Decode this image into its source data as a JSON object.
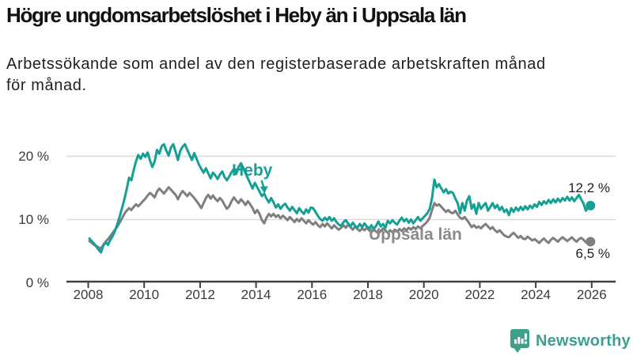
{
  "header": {
    "title": "Högre ungdomsarbetslöshet i Heby än i Uppsala län",
    "subtitle_line1": "Arbetssökande som andel av den registerbaserade arbetskraften månad",
    "subtitle_line2": "för månad."
  },
  "chart_data": {
    "type": "line",
    "title": "Högre ungdomsarbetslöshet i Heby än i Uppsala län",
    "xlabel": "",
    "ylabel": "",
    "y_unit": "%",
    "x_start_year": 2008,
    "points_per_year": 12,
    "ylim": [
      0,
      24
    ],
    "grid": "horizontal",
    "legend_position": "inline-labels",
    "x_ticks": [
      "2008",
      "2010",
      "2012",
      "2014",
      "2016",
      "2018",
      "2020",
      "2022",
      "2024",
      "2026"
    ],
    "y_ticks": [
      {
        "label": "0 %",
        "value": 0
      },
      {
        "label": "10 %",
        "value": 10
      },
      {
        "label": "20 %",
        "value": 20
      }
    ],
    "series": [
      {
        "id": "uppsala-lan",
        "name": "Uppsala län",
        "color": "#7F7F7F",
        "end_label": "6,5 %",
        "end_value": 6.5,
        "values": [
          6.6,
          6.3,
          6.0,
          5.8,
          5.6,
          5.4,
          6.0,
          6.5,
          6.9,
          7.4,
          7.9,
          8.4,
          8.9,
          9.5,
          10.2,
          10.9,
          11.4,
          11.8,
          11.5,
          12.0,
          12.4,
          12.1,
          12.5,
          12.9,
          13.3,
          13.8,
          14.2,
          13.9,
          13.5,
          14.4,
          14.9,
          14.5,
          14.1,
          14.6,
          15.1,
          14.7,
          14.3,
          13.9,
          13.2,
          14.0,
          14.5,
          14.1,
          13.7,
          14.2,
          13.8,
          13.4,
          12.9,
          12.4,
          11.8,
          12.6,
          13.4,
          13.9,
          13.3,
          13.8,
          13.3,
          12.9,
          13.4,
          13.0,
          12.3,
          11.7,
          12.1,
          12.9,
          13.5,
          13.0,
          12.6,
          13.2,
          12.8,
          12.3,
          12.9,
          12.4,
          11.8,
          11.0,
          11.5,
          10.9,
          9.9,
          9.4,
          10.3,
          10.9,
          10.5,
          10.9,
          10.4,
          10.7,
          10.2,
          10.6,
          10.3,
          9.9,
          10.4,
          10.0,
          9.6,
          10.1,
          9.7,
          10.2,
          9.8,
          9.4,
          9.9,
          9.5,
          9.2,
          9.6,
          9.1,
          8.8,
          9.3,
          8.9,
          9.4,
          9.0,
          8.6,
          9.1,
          8.7,
          8.4,
          8.7,
          9.1,
          8.7,
          9.2,
          8.8,
          8.4,
          8.9,
          8.5,
          8.2,
          8.6,
          8.3,
          8.7,
          8.3,
          8.0,
          8.4,
          8.1,
          7.8,
          8.2,
          8.6,
          8.3,
          7.9,
          8.3,
          8.0,
          8.4,
          8.1,
          8.5,
          8.2,
          8.6,
          8.3,
          8.7,
          8.4,
          8.8,
          8.5,
          8.9,
          8.6,
          9.0,
          9.3,
          9.7,
          10.3,
          11.5,
          12.6,
          12.2,
          12.4,
          12.0,
          11.6,
          11.2,
          11.5,
          11.1,
          11.0,
          11.4,
          10.8,
          10.3,
          10.1,
          10.4,
          9.9,
          9.4,
          8.8,
          9.1,
          8.7,
          8.9,
          8.6,
          9.0,
          9.3,
          8.9,
          8.5,
          8.8,
          8.3,
          8.0,
          8.3,
          7.9,
          7.5,
          7.3,
          7.2,
          7.6,
          7.9,
          7.5,
          7.1,
          7.4,
          7.0,
          6.9,
          7.3,
          7.0,
          6.7,
          6.9,
          6.6,
          6.3,
          6.7,
          7.0,
          6.6,
          6.3,
          6.8,
          7.1,
          6.8,
          6.5,
          6.9,
          7.2,
          6.9,
          6.6,
          6.9,
          7.2,
          6.8,
          6.5,
          6.9,
          7.1,
          6.8,
          6.4,
          6.7,
          6.5
        ]
      },
      {
        "id": "heby",
        "name": "Heby",
        "color": "#14A094",
        "end_label": "12,2 %",
        "end_value": 12.2,
        "values": [
          7.0,
          6.6,
          6.2,
          5.7,
          5.2,
          4.8,
          5.9,
          6.4,
          6.0,
          6.8,
          7.4,
          8.2,
          9.3,
          10.5,
          11.8,
          13.2,
          14.8,
          16.6,
          16.2,
          17.8,
          19.2,
          20.2,
          19.6,
          20.4,
          19.9,
          20.6,
          19.3,
          18.3,
          19.2,
          21.0,
          20.4,
          21.6,
          21.9,
          20.9,
          20.1,
          21.4,
          21.9,
          20.7,
          19.4,
          20.9,
          21.5,
          21.9,
          21.0,
          20.2,
          19.4,
          20.5,
          19.6,
          18.7,
          18.0,
          17.4,
          18.1,
          17.3,
          16.5,
          17.4,
          17.0,
          16.4,
          17.1,
          17.6,
          16.7,
          16.2,
          16.8,
          17.5,
          18.0,
          17.2,
          18.3,
          18.9,
          18.2,
          17.3,
          16.5,
          15.7,
          14.9,
          15.8,
          15.1,
          14.4,
          13.7,
          14.1,
          13.3,
          12.7,
          13.4,
          12.7,
          11.9,
          12.4,
          11.7,
          12.2,
          12.5,
          11.9,
          11.4,
          12.0,
          11.5,
          11.0,
          11.8,
          11.3,
          10.9,
          11.6,
          11.1,
          11.9,
          11.8,
          11.2,
          10.6,
          10.1,
          9.8,
          10.3,
          9.9,
          10.4,
          9.8,
          10.2,
          9.6,
          9.2,
          9.0,
          9.6,
          9.9,
          9.4,
          8.9,
          9.5,
          9.0,
          8.7,
          9.3,
          8.8,
          9.4,
          8.9,
          8.6,
          9.1,
          8.5,
          9.0,
          9.7,
          8.9,
          9.3,
          8.7,
          9.8,
          9.4,
          9.9,
          9.5,
          9.2,
          9.8,
          10.3,
          9.7,
          10.1,
          9.5,
          10.0,
          9.4,
          9.9,
          10.4,
          9.8,
          10.2,
          10.6,
          11.0,
          11.7,
          13.4,
          16.3,
          15.1,
          15.6,
          14.9,
          14.3,
          14.8,
          14.1,
          14.4,
          14.2,
          13.3,
          12.6,
          11.0,
          12.6,
          11.4,
          13.0,
          13.7,
          11.7,
          12.4,
          10.9,
          12.6,
          11.7,
          12.2,
          12.6,
          11.4,
          12.0,
          12.6,
          11.8,
          12.3,
          11.5,
          12.0,
          11.2,
          11.6,
          10.7,
          11.8,
          11.2,
          11.9,
          11.4,
          12.0,
          11.5,
          12.1,
          11.6,
          12.2,
          11.8,
          12.4,
          12.0,
          12.8,
          12.3,
          12.9,
          12.5,
          13.1,
          12.6,
          13.2,
          12.7,
          13.3,
          12.8,
          13.4,
          13.0,
          13.6,
          13.0,
          13.5,
          12.9,
          13.4,
          13.9,
          13.2,
          12.5,
          11.4,
          11.9,
          12.2
        ]
      }
    ]
  },
  "colors": {
    "heby_teal": "#14A094",
    "uppsala_gray": "#7F7F7F",
    "gridline": "#DBDBDB",
    "axis": "#404040",
    "brand_teal": "#3F9F8C"
  },
  "footer": {
    "brand": "Newsworthy",
    "logo_icon": "bar-chart-speech-bubble"
  }
}
